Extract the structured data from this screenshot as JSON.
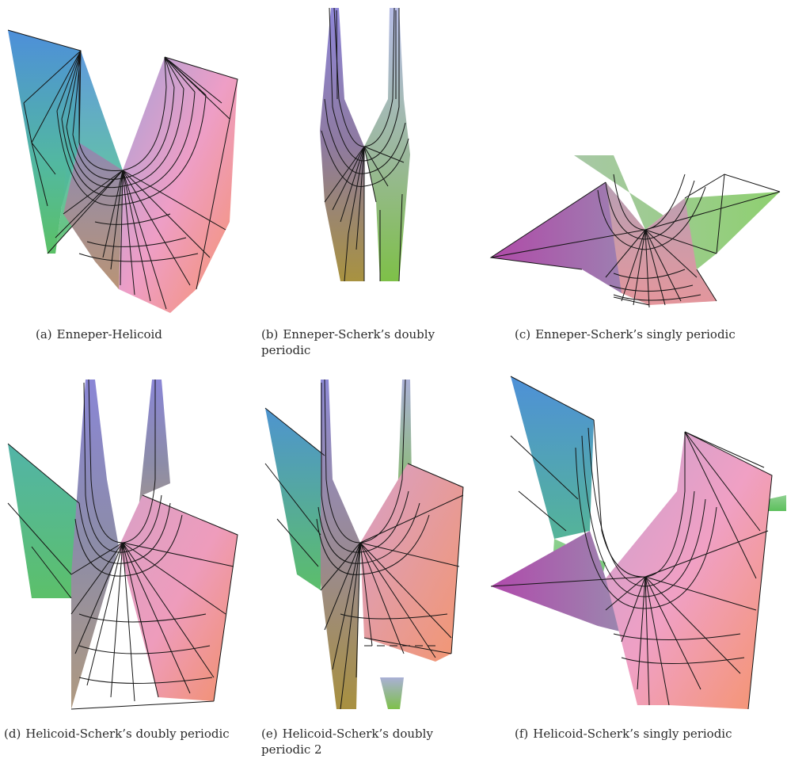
{
  "figures": [
    {
      "label": "(a)",
      "caption": "Enneper-Helicoid"
    },
    {
      "label": "(b)",
      "caption": "Enneper-Scherk’s doubly periodic"
    },
    {
      "label": "(c)",
      "caption": "Enneper-Scherk’s singly periodic"
    },
    {
      "label": "(d)",
      "caption": "Helicoid-Scherk’s doubly periodic"
    },
    {
      "label": "(e)",
      "caption": "Helicoid-Scherk’s doubly periodic 2"
    },
    {
      "label": "(f)",
      "caption": "Helicoid-Scherk’s singly periodic"
    }
  ],
  "colors": {
    "blue": "#4f92d8",
    "teal": "#52b6a4",
    "green": "#5cc06c",
    "lilac": "#9aa0d8",
    "pink": "#f0a2c8",
    "salmon": "#f5946a",
    "purple": "#b45ab4",
    "olive": "#a89060",
    "mesh": "#141414"
  }
}
